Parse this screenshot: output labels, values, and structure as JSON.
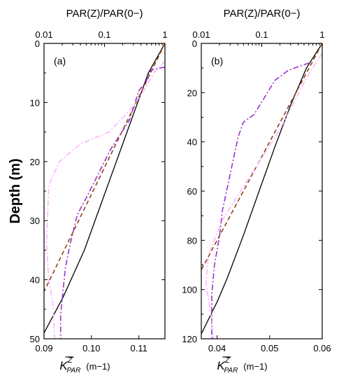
{
  "chart_data": [
    {
      "type": "line",
      "panel_label": "(a)",
      "top_axis_label": "PAR(Z)/PAR(0−)",
      "top_axis_scale": "log",
      "top_ticks": [
        {
          "value": 0.01,
          "label": "0.01"
        },
        {
          "value": 0.1,
          "label": "0.1"
        },
        {
          "value": 1,
          "label": "1"
        }
      ],
      "top_xlim": [
        0.01,
        1
      ],
      "bottom_axis_label": "K̄ PAR Z (m−1)",
      "bottom_ticks": [
        {
          "value": 0.09,
          "label": "0.09"
        },
        {
          "value": 0.1,
          "label": "0.10"
        },
        {
          "value": 0.11,
          "label": "0.11"
        }
      ],
      "bottom_xlim": [
        0.09,
        0.1155
      ],
      "ylabel": "Depth (m)",
      "ylim": [
        0,
        50
      ],
      "y_ticks": [
        {
          "value": 0,
          "label": "0"
        },
        {
          "value": 10,
          "label": "10"
        },
        {
          "value": 20,
          "label": "20"
        },
        {
          "value": 30,
          "label": "30"
        },
        {
          "value": 40,
          "label": "40"
        },
        {
          "value": 50,
          "label": "50"
        }
      ],
      "series": [
        {
          "axis": "bottom",
          "style": "solid",
          "color": "#000000",
          "points": [
            [
              0.1155,
              0
            ],
            [
              0.112,
              5
            ],
            [
              0.1075,
              15
            ],
            [
              0.103,
              25
            ],
            [
              0.0985,
              35
            ],
            [
              0.094,
              43
            ],
            [
              0.09,
              49
            ]
          ]
        },
        {
          "axis": "bottom",
          "style": "dashed",
          "color": "#8b4513",
          "points": [
            [
              0.1155,
              0
            ],
            [
              0.09,
              42
            ]
          ]
        },
        {
          "axis": "bottom",
          "style": "dashdot",
          "color": "#9932cc",
          "points": [
            [
              0.1155,
              4
            ],
            [
              0.1125,
              4.5
            ],
            [
              0.1115,
              6.5
            ],
            [
              0.11,
              8
            ],
            [
              0.108,
              13
            ],
            [
              0.104,
              18
            ],
            [
              0.1015,
              22
            ],
            [
              0.099,
              26
            ],
            [
              0.097,
              29
            ],
            [
              0.0955,
              34
            ],
            [
              0.0945,
              38
            ],
            [
              0.094,
              42
            ],
            [
              0.0935,
              46
            ],
            [
              0.0935,
              50
            ]
          ]
        },
        {
          "axis": "top",
          "style": "dashdot",
          "color": "#ffb3ff",
          "points": [
            [
              1,
              3
            ],
            [
              0.65,
              5
            ],
            [
              0.45,
              8
            ],
            [
              0.28,
              11
            ],
            [
              0.12,
              15
            ],
            [
              0.04,
              17
            ],
            [
              0.018,
              20
            ],
            [
              0.012,
              24
            ],
            [
              0.011,
              34
            ],
            [
              0.012,
              40
            ],
            [
              0.014,
              44
            ],
            [
              0.015,
              50
            ]
          ]
        }
      ]
    },
    {
      "type": "line",
      "panel_label": "(b)",
      "top_axis_label": "PAR(Z)/PAR(0−)",
      "top_axis_scale": "log",
      "top_ticks": [
        {
          "value": 0.01,
          "label": "0.01"
        },
        {
          "value": 0.1,
          "label": "0.1"
        },
        {
          "value": 1,
          "label": "1"
        }
      ],
      "top_xlim": [
        0.01,
        1
      ],
      "bottom_axis_label": "K̄ PAR Z (m−1)",
      "bottom_ticks": [
        {
          "value": 0.04,
          "label": "0.04"
        },
        {
          "value": 0.05,
          "label": "0.05"
        },
        {
          "value": 0.06,
          "label": "0.06"
        }
      ],
      "bottom_xlim": [
        0.037,
        0.06
      ],
      "ylabel": "",
      "ylim": [
        0,
        120
      ],
      "y_ticks": [
        {
          "value": 0,
          "label": "0"
        },
        {
          "value": 20,
          "label": "20"
        },
        {
          "value": 40,
          "label": "40"
        },
        {
          "value": 60,
          "label": "60"
        },
        {
          "value": 80,
          "label": "80"
        },
        {
          "value": 100,
          "label": "100"
        },
        {
          "value": 120,
          "label": "120"
        }
      ],
      "series": [
        {
          "axis": "bottom",
          "style": "solid",
          "color": "#000000",
          "points": [
            [
              0.06,
              0
            ],
            [
              0.057,
              10
            ],
            [
              0.054,
              25
            ],
            [
              0.051,
              42
            ],
            [
              0.048,
              60
            ],
            [
              0.045,
              78
            ],
            [
              0.042,
              95
            ],
            [
              0.04,
              105
            ],
            [
              0.037,
              118
            ]
          ]
        },
        {
          "axis": "bottom",
          "style": "dashed",
          "color": "#8b4513",
          "points": [
            [
              0.06,
              0
            ],
            [
              0.037,
              92
            ]
          ]
        },
        {
          "axis": "bottom",
          "style": "dashdot",
          "color": "#9932cc",
          "points": [
            [
              0.0575,
              8
            ],
            [
              0.056,
              9
            ],
            [
              0.0535,
              11
            ],
            [
              0.051,
              15
            ],
            [
              0.049,
              22
            ],
            [
              0.047,
              29
            ],
            [
              0.045,
              32
            ],
            [
              0.044,
              38
            ],
            [
              0.043,
              48
            ],
            [
              0.042,
              58
            ],
            [
              0.041,
              68
            ],
            [
              0.0405,
              78
            ],
            [
              0.0395,
              90
            ],
            [
              0.039,
              102
            ],
            [
              0.039,
              112
            ],
            [
              0.039,
              120
            ]
          ]
        },
        {
          "axis": "top",
          "style": "dashdot",
          "color": "#ffb3ff",
          "points": [
            [
              1,
              4
            ],
            [
              0.55,
              14
            ],
            [
              0.2,
              35
            ],
            [
              0.06,
              55
            ],
            [
              0.022,
              72
            ],
            [
              0.013,
              86
            ],
            [
              0.012,
              98
            ],
            [
              0.014,
              108
            ],
            [
              0.016,
              120
            ]
          ]
        }
      ]
    }
  ]
}
